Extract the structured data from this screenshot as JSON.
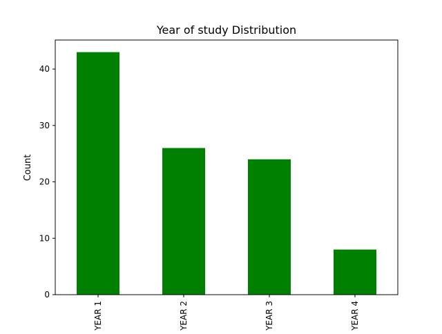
{
  "chart_data": {
    "type": "bar",
    "title": "Year of study Distribution",
    "xlabel": "",
    "ylabel": "Count",
    "categories": [
      "YEAR 1",
      "YEAR 2",
      "YEAR 3",
      "YEAR 4"
    ],
    "values": [
      43,
      26,
      24,
      8
    ],
    "ylim": [
      0,
      45.15
    ],
    "yticks": [
      0,
      10,
      20,
      30,
      40
    ],
    "bar_color": "#008000",
    "grid": false,
    "legend": false
  }
}
